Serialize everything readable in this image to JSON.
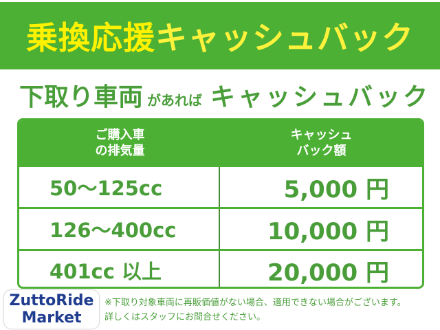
{
  "banner": {
    "title_part1": "乗換応援",
    "title_part2": "キャッシュバック"
  },
  "subtitle": {
    "part1": "下取り車両",
    "part2": "があれば",
    "part3": "キャッシュバック"
  },
  "table": {
    "headers": [
      "ご購入車\nの排気量",
      "キャッシュ\nバック額"
    ],
    "rows": [
      {
        "displacement": "50～125cc",
        "amount": "5,000 円"
      },
      {
        "displacement": "126～400cc",
        "amount": "10,000 円"
      },
      {
        "displacement": "401cc 以上",
        "amount": "20,000 円"
      }
    ]
  },
  "notes": [
    "※下取り対象車両に再販価値がない場合、適用できない場合がございます。",
    "詳しくはスタッフにお問合せください。"
  ],
  "logo": {
    "line1": "ZuttoRide",
    "line2": "Market"
  },
  "colors": {
    "green": "#4cb034",
    "yellow": "#fff200",
    "text_green": "#4a9e3a",
    "logo_blue": "#1f3c8f"
  }
}
